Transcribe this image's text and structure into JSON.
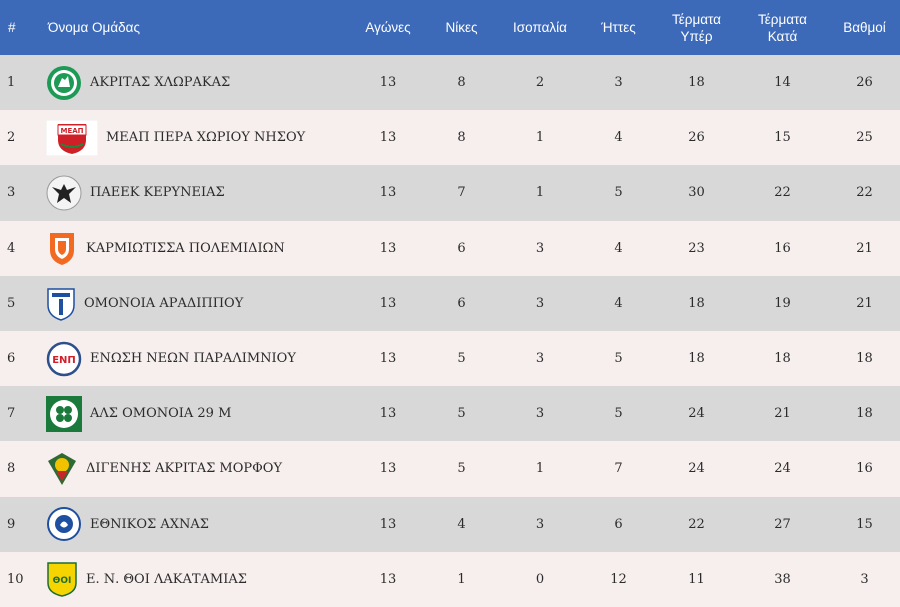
{
  "headers": {
    "rank": "#",
    "team": "Όνομα Ομάδας",
    "played": "Αγώνες",
    "wins": "Νίκες",
    "draws": "Ισοπαλία",
    "losses": "Ήττες",
    "gf1": "Τέρματα",
    "gf2": "Υπέρ",
    "ga1": "Τέρματα",
    "ga2": "Κατά",
    "points": "Βαθμοί"
  },
  "rows": [
    {
      "rank": "1",
      "team": "ΑΚΡΙΤΑΣ ΧΛΩΡΑΚΑΣ",
      "played": "13",
      "wins": "8",
      "draws": "2",
      "losses": "3",
      "gf": "18",
      "ga": "14",
      "points": "26",
      "logo": "akritas-chlorakas-crest"
    },
    {
      "rank": "2",
      "team": "ΜΕΑΠ ΠΕΡΑ ΧΩΡΙΟΥ ΝΗΣΟΥ",
      "played": "13",
      "wins": "8",
      "draws": "1",
      "losses": "4",
      "gf": "26",
      "ga": "15",
      "points": "25",
      "logo": "meap-crest",
      "logo_text": "ΜΕΑΠ"
    },
    {
      "rank": "3",
      "team": "ΠΑΕΕΚ ΚΕΡΥΝΕΙΑΣ",
      "played": "13",
      "wins": "7",
      "draws": "1",
      "losses": "5",
      "gf": "30",
      "ga": "22",
      "points": "22",
      "logo": "paeek-eagle-crest"
    },
    {
      "rank": "4",
      "team": "ΚΑΡΜΙΩΤΙΣΣΑ ΠΟΛΕΜΙΔΙΩΝ",
      "played": "13",
      "wins": "6",
      "draws": "3",
      "losses": "4",
      "gf": "23",
      "ga": "16",
      "points": "21",
      "logo": "karmiotissa-shield"
    },
    {
      "rank": "5",
      "team": "ΟΜΟΝΟΙΑ ΑΡΑΔΙΠΠΟΥ",
      "played": "13",
      "wins": "6",
      "draws": "3",
      "losses": "4",
      "gf": "18",
      "ga": "19",
      "points": "21",
      "logo": "omonoia-aradippou-shield"
    },
    {
      "rank": "6",
      "team": "ΕΝΩΣΗ ΝΕΩΝ ΠΑΡΑΛΙΜΝΙΟΥ",
      "played": "13",
      "wins": "5",
      "draws": "3",
      "losses": "5",
      "gf": "18",
      "ga": "18",
      "points": "18",
      "logo": "enp-crest",
      "logo_text": "ΕΝΠ"
    },
    {
      "rank": "7",
      "team": "ΑΛΣ ΟΜΟΝΟΙΑ 29 Μ",
      "played": "13",
      "wins": "5",
      "draws": "3",
      "losses": "5",
      "gf": "24",
      "ga": "21",
      "points": "18",
      "logo": "omonoia-29m-clover"
    },
    {
      "rank": "8",
      "team": "ΔΙΓΕΝΗΣ ΑΚΡΙΤΑΣ ΜΟΡΦΟΥ",
      "played": "13",
      "wins": "5",
      "draws": "1",
      "losses": "7",
      "gf": "24",
      "ga": "24",
      "points": "16",
      "logo": "digenis-morfou-crest"
    },
    {
      "rank": "9",
      "team": "ΕΘΝΙΚΟΣ ΑΧΝΑΣ",
      "played": "13",
      "wins": "4",
      "draws": "3",
      "losses": "6",
      "gf": "22",
      "ga": "27",
      "points": "15",
      "logo": "ethnikos-achnas-crest"
    },
    {
      "rank": "10",
      "team": "Ε. Ν. ΘΟΙ ΛΑΚΑΤΑΜΙΑΣ",
      "played": "13",
      "wins": "1",
      "draws": "0",
      "losses": "12",
      "gf": "11",
      "ga": "38",
      "points": "3",
      "logo": "thoi-lakatamias-crest",
      "logo_text": "ΘΟΙ"
    }
  ]
}
